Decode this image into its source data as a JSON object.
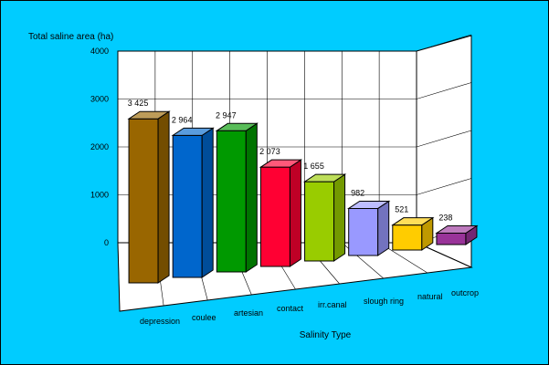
{
  "chart_data": {
    "type": "bar",
    "ylabel": "Total saline area (ha)",
    "xlabel": "Salinity Type",
    "ylim": [
      0,
      4000
    ],
    "yticks": [
      0,
      1000,
      2000,
      3000,
      4000
    ],
    "grid": true,
    "categories": [
      "depression",
      "coulee",
      "artesian",
      "contact",
      "irr.canal",
      "slough ring",
      "natural",
      "outcrop"
    ],
    "values": [
      3425,
      2964,
      2947,
      2073,
      1655,
      982,
      521,
      238
    ],
    "value_labels": [
      "3 425",
      "2 964",
      "2 947",
      "2 073",
      "1 655",
      "982",
      "521",
      "238"
    ],
    "colors": [
      "#996600",
      "#0066cc",
      "#009900",
      "#ff0033",
      "#99cc00",
      "#9999ff",
      "#ffcc00",
      "#993399"
    ],
    "background": "#00ccff"
  }
}
